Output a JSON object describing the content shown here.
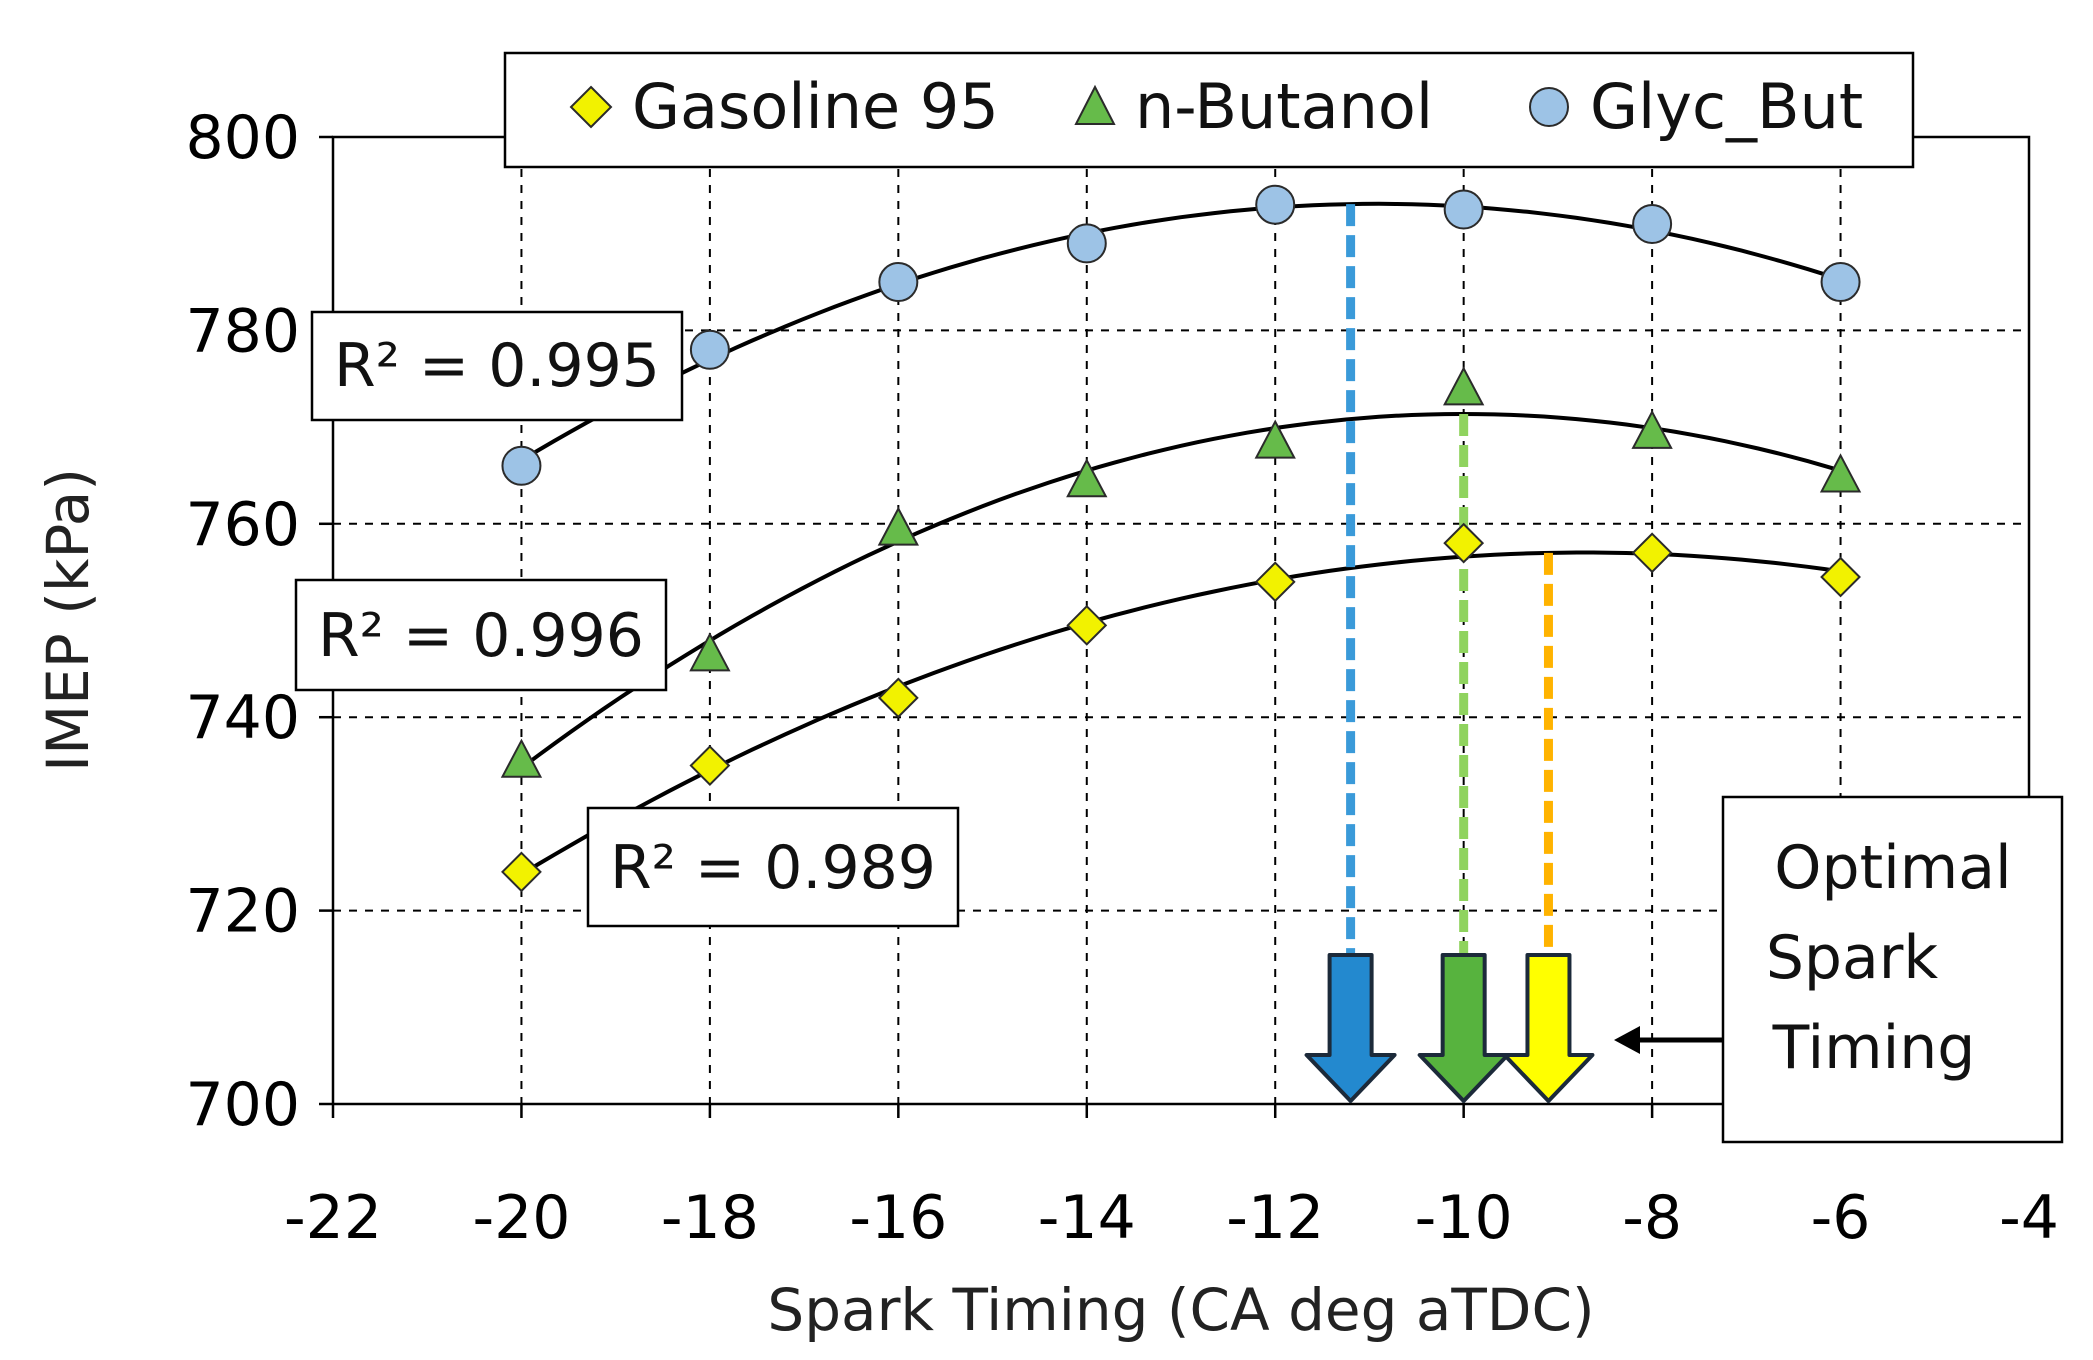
{
  "chart_data": {
    "type": "scatter",
    "title": "",
    "xlabel": "Spark Timing  (CA deg aTDC)",
    "ylabel": "IMEP (kPa)",
    "xlim": [
      -22,
      -4
    ],
    "ylim": [
      700,
      800
    ],
    "x_ticks": [
      -22,
      -20,
      -18,
      -16,
      -14,
      -12,
      -10,
      -8,
      -6,
      -4
    ],
    "y_ticks": [
      700,
      720,
      740,
      760,
      780,
      800
    ],
    "grid": true,
    "legend_position": "top",
    "series": [
      {
        "name": "Gasoline 95",
        "marker": "diamond",
        "color": "#f2f200",
        "x": [
          -20,
          -18,
          -16,
          -14,
          -12,
          -10,
          -8,
          -6
        ],
        "y": [
          724,
          735,
          742,
          749.5,
          754,
          758,
          757,
          754.5
        ],
        "fit": {
          "type": "quadratic",
          "r2_label": "R² = 0.989",
          "optimum_x": -9.1,
          "optimum_color": "#ffb300"
        }
      },
      {
        "name": "n-Butanol",
        "marker": "triangle",
        "color": "#66bb4a",
        "x": [
          -20,
          -18,
          -16,
          -14,
          -12,
          -10,
          -8,
          -6
        ],
        "y": [
          735.5,
          746.5,
          759.5,
          764.5,
          768.5,
          774,
          769.5,
          765
        ],
        "fit": {
          "type": "quadratic",
          "r2_label": "R² = 0.996",
          "optimum_x": -10.0,
          "optimum_color": "#8fd35e"
        }
      },
      {
        "name": "Glyc_But",
        "marker": "circle",
        "color": "#9dc3e6",
        "x": [
          -20,
          -18,
          -16,
          -14,
          -12,
          -10,
          -8,
          -6
        ],
        "y": [
          766,
          778,
          785,
          789,
          793,
          792.5,
          791,
          785
        ],
        "fit": {
          "type": "quadratic",
          "r2_label": "R² = 0.995",
          "optimum_x": -11.2,
          "optimum_color": "#3a9ad9"
        }
      }
    ],
    "arrows": [
      {
        "series": "Glyc_But",
        "color": "#2389cf"
      },
      {
        "series": "n-Butanol",
        "color": "#57b33e"
      },
      {
        "series": "Gasoline 95",
        "color": "#ffff00"
      }
    ],
    "annotation": "Optimal Spark Timing",
    "annotation_lines": [
      "Optimal",
      "Spark",
      "Timing"
    ]
  }
}
